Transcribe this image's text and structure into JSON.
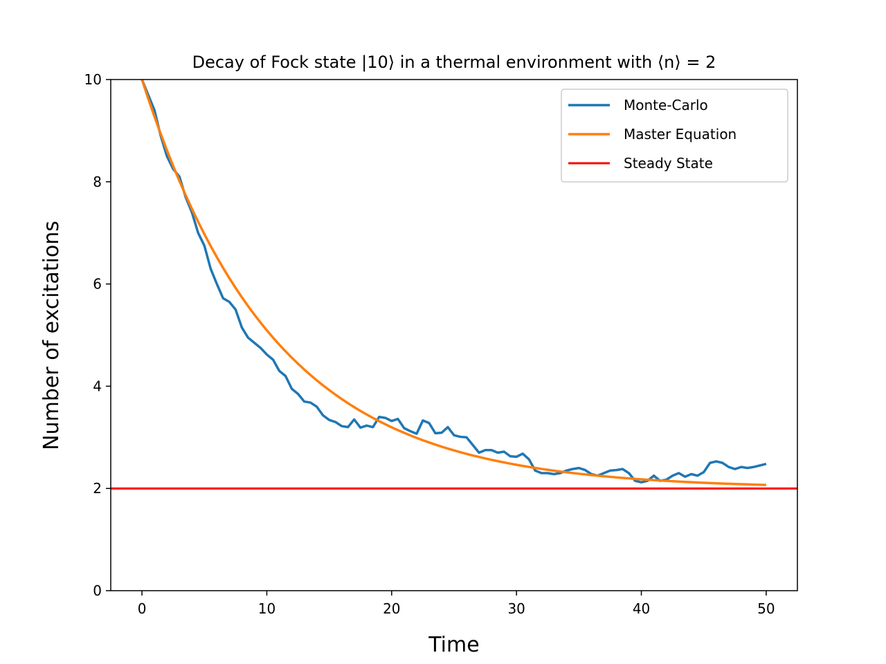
{
  "chart_data": {
    "type": "line",
    "title": "Decay of Fock state |10⟩ in a thermal environment with ⟨n⟩ = 2",
    "xlabel": "Time",
    "ylabel": "Number of excitations",
    "xlim": [
      -2.5,
      52.5
    ],
    "ylim": [
      0,
      10
    ],
    "xticks": [
      0,
      10,
      20,
      30,
      40,
      50
    ],
    "yticks": [
      0,
      2,
      4,
      6,
      8,
      10
    ],
    "grid": false,
    "legend_position": "top-right",
    "series": [
      {
        "name": "Monte-Carlo",
        "color": "#1f77b4",
        "x": [
          0.0,
          0.5,
          1.0,
          1.5,
          2.0,
          2.5,
          3.0,
          3.5,
          4.0,
          4.5,
          5.0,
          5.5,
          6.0,
          6.5,
          7.0,
          7.5,
          8.0,
          8.5,
          9.0,
          9.5,
          10.0,
          10.5,
          11.0,
          11.5,
          12.0,
          12.5,
          13.0,
          13.5,
          14.0,
          14.5,
          15.0,
          15.5,
          16.0,
          16.5,
          17.0,
          17.5,
          18.0,
          18.5,
          19.0,
          19.5,
          20.0,
          20.5,
          21.0,
          21.5,
          22.0,
          22.5,
          23.0,
          23.5,
          24.0,
          24.5,
          25.0,
          25.5,
          26.0,
          26.5,
          27.0,
          27.5,
          28.0,
          28.5,
          29.0,
          29.5,
          30.0,
          30.5,
          31.0,
          31.5,
          32.0,
          32.5,
          33.0,
          33.5,
          34.0,
          34.5,
          35.0,
          35.5,
          36.0,
          36.5,
          37.0,
          37.5,
          38.0,
          38.5,
          39.0,
          39.5,
          40.0,
          40.5,
          41.0,
          41.5,
          42.0,
          42.5,
          43.0,
          43.5,
          44.0,
          44.5,
          45.0,
          45.5,
          46.0,
          46.5,
          47.0,
          47.5,
          48.0,
          48.5,
          49.0,
          49.5,
          50.0
        ],
        "y": [
          10.0,
          9.7,
          9.4,
          8.9,
          8.5,
          8.25,
          8.1,
          7.7,
          7.4,
          7.0,
          6.75,
          6.3,
          6.0,
          5.72,
          5.65,
          5.5,
          5.15,
          4.95,
          4.85,
          4.75,
          4.62,
          4.52,
          4.3,
          4.2,
          3.95,
          3.85,
          3.7,
          3.68,
          3.6,
          3.43,
          3.34,
          3.3,
          3.22,
          3.2,
          3.35,
          3.19,
          3.23,
          3.2,
          3.4,
          3.38,
          3.32,
          3.36,
          3.18,
          3.12,
          3.07,
          3.33,
          3.28,
          3.08,
          3.09,
          3.2,
          3.04,
          3.01,
          3.0,
          2.85,
          2.7,
          2.75,
          2.75,
          2.7,
          2.72,
          2.63,
          2.62,
          2.68,
          2.57,
          2.35,
          2.3,
          2.3,
          2.28,
          2.3,
          2.35,
          2.38,
          2.4,
          2.36,
          2.28,
          2.25,
          2.3,
          2.35,
          2.36,
          2.38,
          2.3,
          2.15,
          2.12,
          2.15,
          2.25,
          2.15,
          2.17,
          2.25,
          2.3,
          2.23,
          2.28,
          2.25,
          2.32,
          2.5,
          2.53,
          2.5,
          2.42,
          2.38,
          2.42,
          2.4,
          2.42,
          2.45,
          2.48
        ]
      },
      {
        "name": "Master Equation",
        "color": "#ff7f0e",
        "function": "2 + 8*exp(-0.095*t)",
        "x_range": [
          0,
          50
        ],
        "samples": 101
      },
      {
        "name": "Steady State",
        "color": "#ff0000",
        "constant": 2,
        "x_range": [
          -2.5,
          52.5
        ]
      }
    ]
  }
}
